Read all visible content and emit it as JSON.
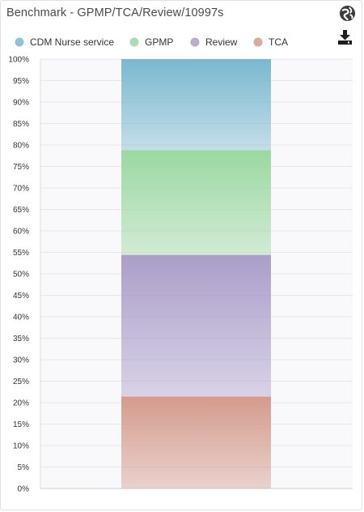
{
  "header": {
    "title": "Benchmark - GPMP/TCA/Review/10997s"
  },
  "icons": {
    "globe": "globe-icon",
    "download": "download-icon"
  },
  "chart_data": {
    "type": "bar",
    "stacked": true,
    "categories": [
      ""
    ],
    "series": [
      {
        "name": "CDM Nurse service",
        "values": [
          21.2
        ],
        "color": "#7ab8cf"
      },
      {
        "name": "GPMP",
        "values": [
          24.4
        ],
        "color": "#9bd8a0"
      },
      {
        "name": "Review",
        "values": [
          33.0
        ],
        "color": "#ab9ec9"
      },
      {
        "name": "TCA",
        "values": [
          21.4
        ],
        "color": "#d49b8c"
      }
    ],
    "stack_order_bottom_to_top": [
      "TCA",
      "Review",
      "GPMP",
      "CDM Nurse service"
    ],
    "ylim": [
      0,
      100
    ],
    "yticks": [
      "0%",
      "5%",
      "10%",
      "15%",
      "20%",
      "25%",
      "30%",
      "35%",
      "40%",
      "45%",
      "50%",
      "55%",
      "60%",
      "65%",
      "70%",
      "75%",
      "80%",
      "85%",
      "90%",
      "95%",
      "100%"
    ],
    "legend_position": "top-left",
    "grid": true,
    "xlabel": "",
    "ylabel": ""
  }
}
